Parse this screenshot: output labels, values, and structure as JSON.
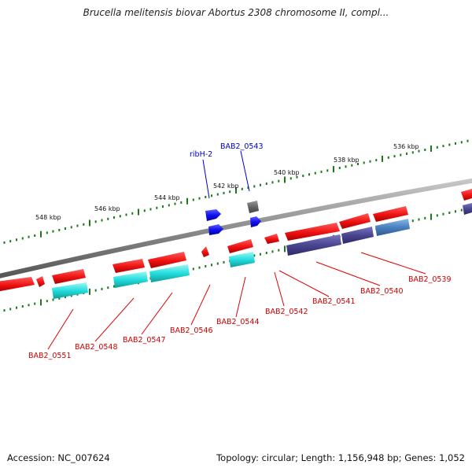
{
  "title": "Brucella melitensis biovar Abortus 2308 chromosome II, compl...",
  "footer": {
    "accession": "Accession: NC_007624",
    "topology": "Topology: circular; Length: 1,156,948 bp; Genes: 1,052"
  },
  "colors": {
    "backbone": "#8c8c8c",
    "forward_gene": "#ee1111",
    "cyan_feature": "#22dddd",
    "navy_feature": "#4a4590",
    "steel_feature": "#4a80c0",
    "blue_gene": "#1111ee",
    "tick": "#1a7a1a",
    "red_label": "#cc0000",
    "blue_label": "#0000cc"
  },
  "scale_labels": [
    "548 kbp",
    "546 kbp",
    "544 kbp",
    "542 kbp",
    "540 kbp",
    "538 kbp",
    "536 kbp"
  ],
  "gene_labels": [
    {
      "name": "BAB2_0551",
      "color": "red_label"
    },
    {
      "name": "BAB2_0548",
      "color": "red_label"
    },
    {
      "name": "BAB2_0547",
      "color": "red_label"
    },
    {
      "name": "BAB2_0546",
      "color": "red_label"
    },
    {
      "name": "BAB2_0544",
      "color": "red_label"
    },
    {
      "name": "BAB2_0542",
      "color": "red_label"
    },
    {
      "name": "BAB2_0541",
      "color": "red_label"
    },
    {
      "name": "BAB2_0540",
      "color": "red_label"
    },
    {
      "name": "BAB2_0539",
      "color": "red_label"
    },
    {
      "name": "ribH-2",
      "color": "blue_label"
    },
    {
      "name": "BAB2_0543",
      "color": "blue_label"
    }
  ]
}
